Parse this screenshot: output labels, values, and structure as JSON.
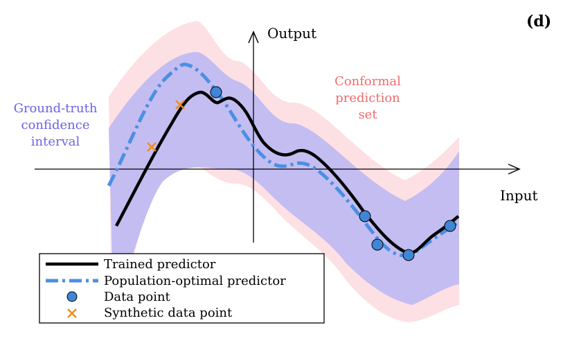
{
  "panel_label": "(d)",
  "axes": {
    "x_label": "Input",
    "y_label": "Output"
  },
  "annotations": {
    "ground_truth": [
      "Ground-truth",
      "confidence",
      "interval"
    ],
    "conformal": [
      "Conformal",
      "prediction",
      "set"
    ]
  },
  "legend": {
    "items": [
      {
        "label": "Trained predictor",
        "kind": "solid-line"
      },
      {
        "label": "Population-optimal predictor",
        "kind": "dashed-line"
      },
      {
        "label": "Data point",
        "kind": "circle-marker"
      },
      {
        "label": "Synthetic data point",
        "kind": "x-marker"
      }
    ]
  },
  "colors": {
    "trained": "#000000",
    "population": "#4a90e2",
    "data_point": "#3f86d6",
    "synthetic": "#f28c1a",
    "confidence_band": "#c4bdf2",
    "conformal_band": "#fde0e4",
    "ground_truth_text": "#6a62e8",
    "conformal_text": "#f06a6a"
  }
}
